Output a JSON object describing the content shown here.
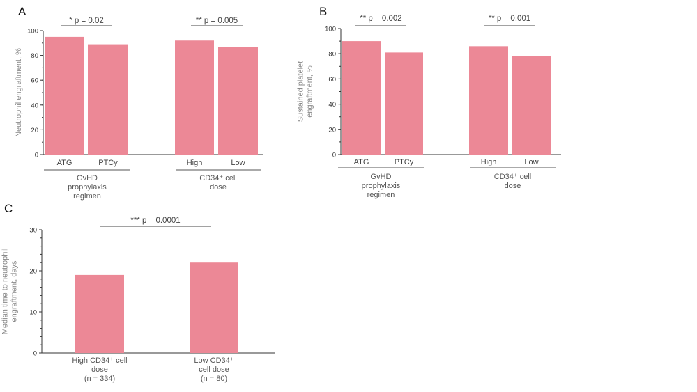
{
  "bar_color": "#EC8896",
  "chart_data": [
    {
      "type": "bar",
      "panel": "A",
      "title": "",
      "ylabel": "Neutrophil engraftment, %",
      "xlabel": "",
      "ylim": [
        0,
        100
      ],
      "yticks": [
        0,
        20,
        40,
        60,
        80,
        100
      ],
      "minor_step": 10,
      "categories": [
        "ATG",
        "PTCy",
        "High",
        "Low"
      ],
      "values": [
        95,
        89,
        92,
        87
      ],
      "groups": [
        {
          "label_lines": [
            "GvHD",
            "prophylaxis",
            "regimen"
          ],
          "members": [
            0,
            1
          ]
        },
        {
          "label_lines": [
            "CD34⁺ cell",
            "dose"
          ],
          "members": [
            2,
            3
          ]
        }
      ],
      "annotations": [
        {
          "text": "* p = 0.02",
          "between": [
            0,
            1
          ]
        },
        {
          "text": "** p = 0.005",
          "between": [
            2,
            3
          ]
        }
      ]
    },
    {
      "type": "bar",
      "panel": "B",
      "title": "",
      "ylabel_lines": [
        "Sustained platelet",
        "engraftment, %"
      ],
      "xlabel": "",
      "ylim": [
        0,
        100
      ],
      "yticks": [
        0,
        20,
        40,
        60,
        80,
        100
      ],
      "minor_step": 10,
      "categories": [
        "ATG",
        "PTCy",
        "High",
        "Low"
      ],
      "values": [
        90,
        81,
        86,
        78
      ],
      "groups": [
        {
          "label_lines": [
            "GvHD",
            "prophylaxis",
            "regimen"
          ],
          "members": [
            0,
            1
          ]
        },
        {
          "label_lines": [
            "CD34⁺ cell",
            "dose"
          ],
          "members": [
            2,
            3
          ]
        }
      ],
      "annotations": [
        {
          "text": "** p = 0.002",
          "between": [
            0,
            1
          ]
        },
        {
          "text": "** p = 0.001",
          "between": [
            2,
            3
          ]
        }
      ]
    },
    {
      "type": "bar",
      "panel": "C",
      "title": "",
      "ylabel_lines": [
        "Median time to neutrophil",
        "engraftment,  days"
      ],
      "xlabel": "",
      "ylim": [
        0,
        30
      ],
      "yticks": [
        0,
        10,
        20,
        30
      ],
      "minor_step": 2,
      "categories": [
        "High CD34⁺ cell dose (n = 334)",
        "Low CD34⁺ cell dose (n = 80)"
      ],
      "category_label_lines": [
        [
          "High CD34⁺ cell",
          "dose",
          "(n = 334)"
        ],
        [
          "Low CD34⁺",
          "cell dose",
          "(n = 80)"
        ]
      ],
      "values": [
        19,
        22
      ],
      "annotations": [
        {
          "text": "*** p = 0.0001",
          "between": [
            0,
            1
          ]
        }
      ]
    }
  ]
}
